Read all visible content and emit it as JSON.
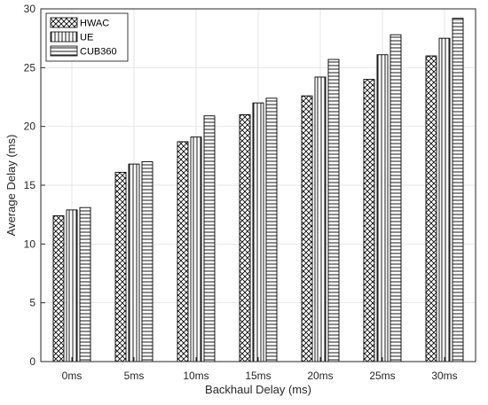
{
  "chart_data": {
    "type": "bar",
    "title": "",
    "xlabel": "Backhaul Delay (ms)",
    "ylabel": "Average Delay (ms)",
    "categories": [
      "0ms",
      "5ms",
      "10ms",
      "15ms",
      "20ms",
      "25ms",
      "30ms"
    ],
    "series": [
      {
        "name": "HWAC",
        "pattern": "crosshatch",
        "values": [
          12.4,
          16.1,
          18.7,
          21.0,
          22.6,
          24.0,
          26.0
        ]
      },
      {
        "name": "UE",
        "pattern": "vertical-lines",
        "values": [
          12.9,
          16.8,
          19.1,
          22.0,
          24.2,
          26.1,
          27.5
        ]
      },
      {
        "name": "CUB360",
        "pattern": "horizontal-lines",
        "values": [
          13.1,
          17.0,
          20.9,
          22.4,
          25.7,
          27.8,
          29.2
        ]
      }
    ],
    "ylim": [
      0,
      30
    ],
    "yticks": [
      0,
      5,
      10,
      15,
      20,
      25,
      30
    ],
    "grid": true,
    "legend_position": "top-left",
    "colors": {
      "axis": "#262626",
      "grid": "#dcdcdc",
      "bar_stroke": "#000000",
      "background": "#ffffff"
    }
  }
}
